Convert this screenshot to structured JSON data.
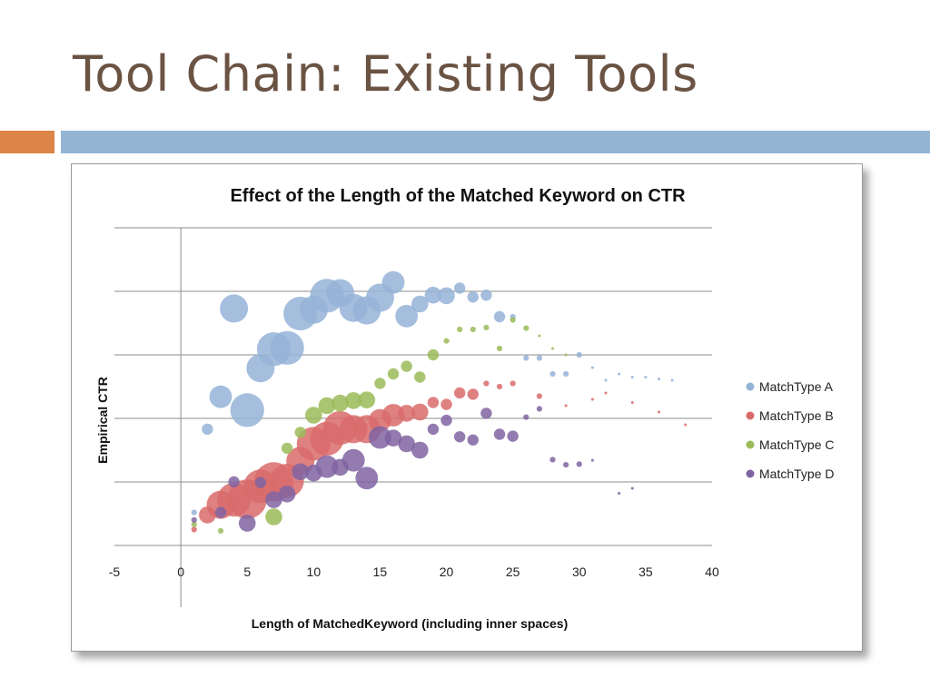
{
  "slide": {
    "title": "Tool Chain: Existing Tools",
    "accent_orange": "#dd8447",
    "accent_blue": "#93b5d3",
    "title_color": "#6b5344"
  },
  "chart_data": {
    "type": "scatter",
    "title": "Effect of the Length of the Matched Keyword on CTR",
    "xlabel": "Length of MatchedKeyword (including inner spaces)",
    "ylabel": "Empirical CTR",
    "xlim": [
      -5,
      40
    ],
    "x_ticks": [
      -5,
      0,
      5,
      10,
      15,
      20,
      25,
      30,
      35,
      40
    ],
    "y_gridlines": 6,
    "y_tick_labels_shown": false,
    "grid": true,
    "legend_position": "right",
    "bubble": true,
    "series": [
      {
        "name": "MatchType A",
        "color": "#95b3d7",
        "points": [
          [
            1,
            0.52,
            1
          ],
          [
            2,
            1.83,
            2
          ],
          [
            3,
            2.34,
            4
          ],
          [
            4,
            3.73,
            5
          ],
          [
            5,
            2.13,
            6
          ],
          [
            6,
            2.79,
            5
          ],
          [
            7,
            3.09,
            6
          ],
          [
            8,
            3.11,
            6
          ],
          [
            9,
            3.65,
            6
          ],
          [
            10,
            3.71,
            5
          ],
          [
            11,
            3.93,
            6
          ],
          [
            12,
            3.97,
            5
          ],
          [
            13,
            3.74,
            5
          ],
          [
            14,
            3.7,
            5
          ],
          [
            15,
            3.9,
            5
          ],
          [
            16,
            4.14,
            4
          ],
          [
            17,
            3.61,
            4
          ],
          [
            18,
            3.8,
            3
          ],
          [
            19,
            3.94,
            3
          ],
          [
            20,
            3.93,
            3
          ],
          [
            21,
            4.05,
            2
          ],
          [
            22,
            3.91,
            2
          ],
          [
            23,
            3.94,
            2
          ],
          [
            24,
            3.6,
            2
          ],
          [
            25,
            3.6,
            1
          ],
          [
            26,
            2.95,
            1
          ],
          [
            27,
            2.95,
            1
          ],
          [
            28,
            2.7,
            1
          ],
          [
            29,
            2.7,
            1
          ],
          [
            30,
            3.0,
            1
          ],
          [
            31,
            2.8,
            0.5
          ],
          [
            32,
            2.6,
            0.5
          ],
          [
            33,
            2.7,
            0.5
          ],
          [
            34,
            2.65,
            0.5
          ],
          [
            35,
            2.65,
            0.5
          ],
          [
            36,
            2.62,
            0.5
          ],
          [
            37,
            2.6,
            0.5
          ]
        ]
      },
      {
        "name": "MatchType B",
        "color": "#d96b6b",
        "points": [
          [
            1,
            0.25,
            1
          ],
          [
            2,
            0.48,
            3
          ],
          [
            3,
            0.64,
            5
          ],
          [
            4,
            0.72,
            6
          ],
          [
            5,
            0.73,
            7
          ],
          [
            6,
            0.93,
            6
          ],
          [
            7,
            1.0,
            7
          ],
          [
            8,
            1.02,
            6
          ],
          [
            9,
            1.33,
            5
          ],
          [
            10,
            1.6,
            6
          ],
          [
            11,
            1.68,
            6
          ],
          [
            12,
            1.85,
            6
          ],
          [
            13,
            1.83,
            5
          ],
          [
            14,
            1.83,
            5
          ],
          [
            15,
            1.97,
            4
          ],
          [
            16,
            2.05,
            4
          ],
          [
            17,
            2.08,
            3
          ],
          [
            18,
            2.1,
            3
          ],
          [
            19,
            2.25,
            2
          ],
          [
            20,
            2.22,
            2
          ],
          [
            21,
            2.4,
            2
          ],
          [
            22,
            2.38,
            2
          ],
          [
            23,
            2.55,
            1
          ],
          [
            24,
            2.5,
            1
          ],
          [
            25,
            2.55,
            1
          ],
          [
            27,
            2.35,
            1
          ],
          [
            29,
            2.2,
            0.5
          ],
          [
            31,
            2.3,
            0.5
          ],
          [
            32,
            2.4,
            0.5
          ],
          [
            34,
            2.25,
            0.5
          ],
          [
            36,
            2.1,
            0.5
          ],
          [
            38,
            1.9,
            0.5
          ]
        ]
      },
      {
        "name": "MatchType C",
        "color": "#9bbb59",
        "points": [
          [
            1,
            0.33,
            1
          ],
          [
            3,
            0.23,
            1
          ],
          [
            7,
            0.45,
            3
          ],
          [
            8,
            1.53,
            2
          ],
          [
            9,
            1.78,
            2
          ],
          [
            10,
            2.05,
            3
          ],
          [
            11,
            2.2,
            3
          ],
          [
            12,
            2.24,
            3
          ],
          [
            13,
            2.28,
            3
          ],
          [
            14,
            2.29,
            3
          ],
          [
            15,
            2.55,
            2
          ],
          [
            16,
            2.7,
            2
          ],
          [
            17,
            2.82,
            2
          ],
          [
            18,
            2.65,
            2
          ],
          [
            19,
            3.0,
            2
          ],
          [
            20,
            3.22,
            1
          ],
          [
            21,
            3.4,
            1
          ],
          [
            22,
            3.4,
            1
          ],
          [
            23,
            3.43,
            1
          ],
          [
            24,
            3.1,
            1
          ],
          [
            25,
            3.55,
            1
          ],
          [
            26,
            3.42,
            1
          ],
          [
            27,
            3.3,
            0.5
          ],
          [
            28,
            3.1,
            0.5
          ],
          [
            29,
            3.0,
            0.5
          ]
        ]
      },
      {
        "name": "MatchType D",
        "color": "#8064a2",
        "points": [
          [
            1,
            0.4,
            1
          ],
          [
            3,
            0.52,
            2
          ],
          [
            4,
            1.0,
            2
          ],
          [
            5,
            0.35,
            3
          ],
          [
            6,
            0.99,
            2
          ],
          [
            7,
            0.72,
            3
          ],
          [
            8,
            0.81,
            3
          ],
          [
            9,
            1.16,
            3
          ],
          [
            10,
            1.14,
            3
          ],
          [
            11,
            1.24,
            4
          ],
          [
            12,
            1.23,
            3
          ],
          [
            13,
            1.34,
            4
          ],
          [
            14,
            1.06,
            4
          ],
          [
            15,
            1.7,
            4
          ],
          [
            16,
            1.69,
            3
          ],
          [
            17,
            1.6,
            3
          ],
          [
            18,
            1.5,
            3
          ],
          [
            19,
            1.83,
            2
          ],
          [
            20,
            1.97,
            2
          ],
          [
            21,
            1.71,
            2
          ],
          [
            22,
            1.66,
            2
          ],
          [
            23,
            2.08,
            2
          ],
          [
            24,
            1.75,
            2
          ],
          [
            25,
            1.72,
            2
          ],
          [
            26,
            2.02,
            1
          ],
          [
            27,
            2.15,
            1
          ],
          [
            28,
            1.35,
            1
          ],
          [
            29,
            1.27,
            1
          ],
          [
            30,
            1.28,
            1
          ],
          [
            31,
            1.34,
            0.5
          ],
          [
            33,
            0.82,
            0.5
          ],
          [
            34,
            0.9,
            0.5
          ]
        ]
      }
    ]
  }
}
